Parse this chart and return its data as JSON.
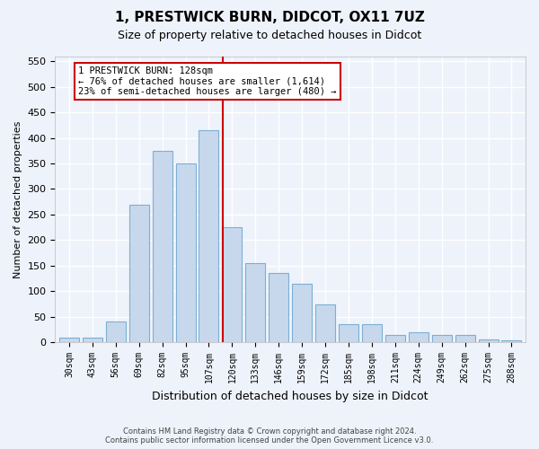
{
  "title": "1, PRESTWICK BURN, DIDCOT, OX11 7UZ",
  "subtitle": "Size of property relative to detached houses in Didcot",
  "xlabel": "Distribution of detached houses by size in Didcot",
  "ylabel": "Number of detached properties",
  "categories": [
    "30sqm",
    "43sqm",
    "56sqm",
    "69sqm",
    "82sqm",
    "95sqm",
    "107sqm",
    "120sqm",
    "133sqm",
    "146sqm",
    "159sqm",
    "172sqm",
    "185sqm",
    "198sqm",
    "211sqm",
    "224sqm",
    "249sqm",
    "262sqm",
    "275sqm",
    "288sqm"
  ],
  "values": [
    10,
    10,
    40,
    270,
    375,
    350,
    415,
    225,
    155,
    135,
    115,
    75,
    35,
    35,
    15,
    20,
    15,
    15,
    5,
    3
  ],
  "bar_color": "#c8d8ec",
  "bar_edge_color": "#7ab0d4",
  "marker_index": 7,
  "marker_line_color": "#cc0000",
  "annotation_title": "1 PRESTWICK BURN: 128sqm",
  "annotation_line1": "← 76% of detached houses are smaller (1,614)",
  "annotation_line2": "23% of semi-detached houses are larger (480) →",
  "annotation_box_edge": "#cc0000",
  "ylim": [
    0,
    560
  ],
  "yticks": [
    0,
    50,
    100,
    150,
    200,
    250,
    300,
    350,
    400,
    450,
    500,
    550
  ],
  "footer_line1": "Contains HM Land Registry data © Crown copyright and database right 2024.",
  "footer_line2": "Contains public sector information licensed under the Open Government Licence v3.0.",
  "bg_color": "#eef2fb",
  "grid_color": "#ffffff"
}
